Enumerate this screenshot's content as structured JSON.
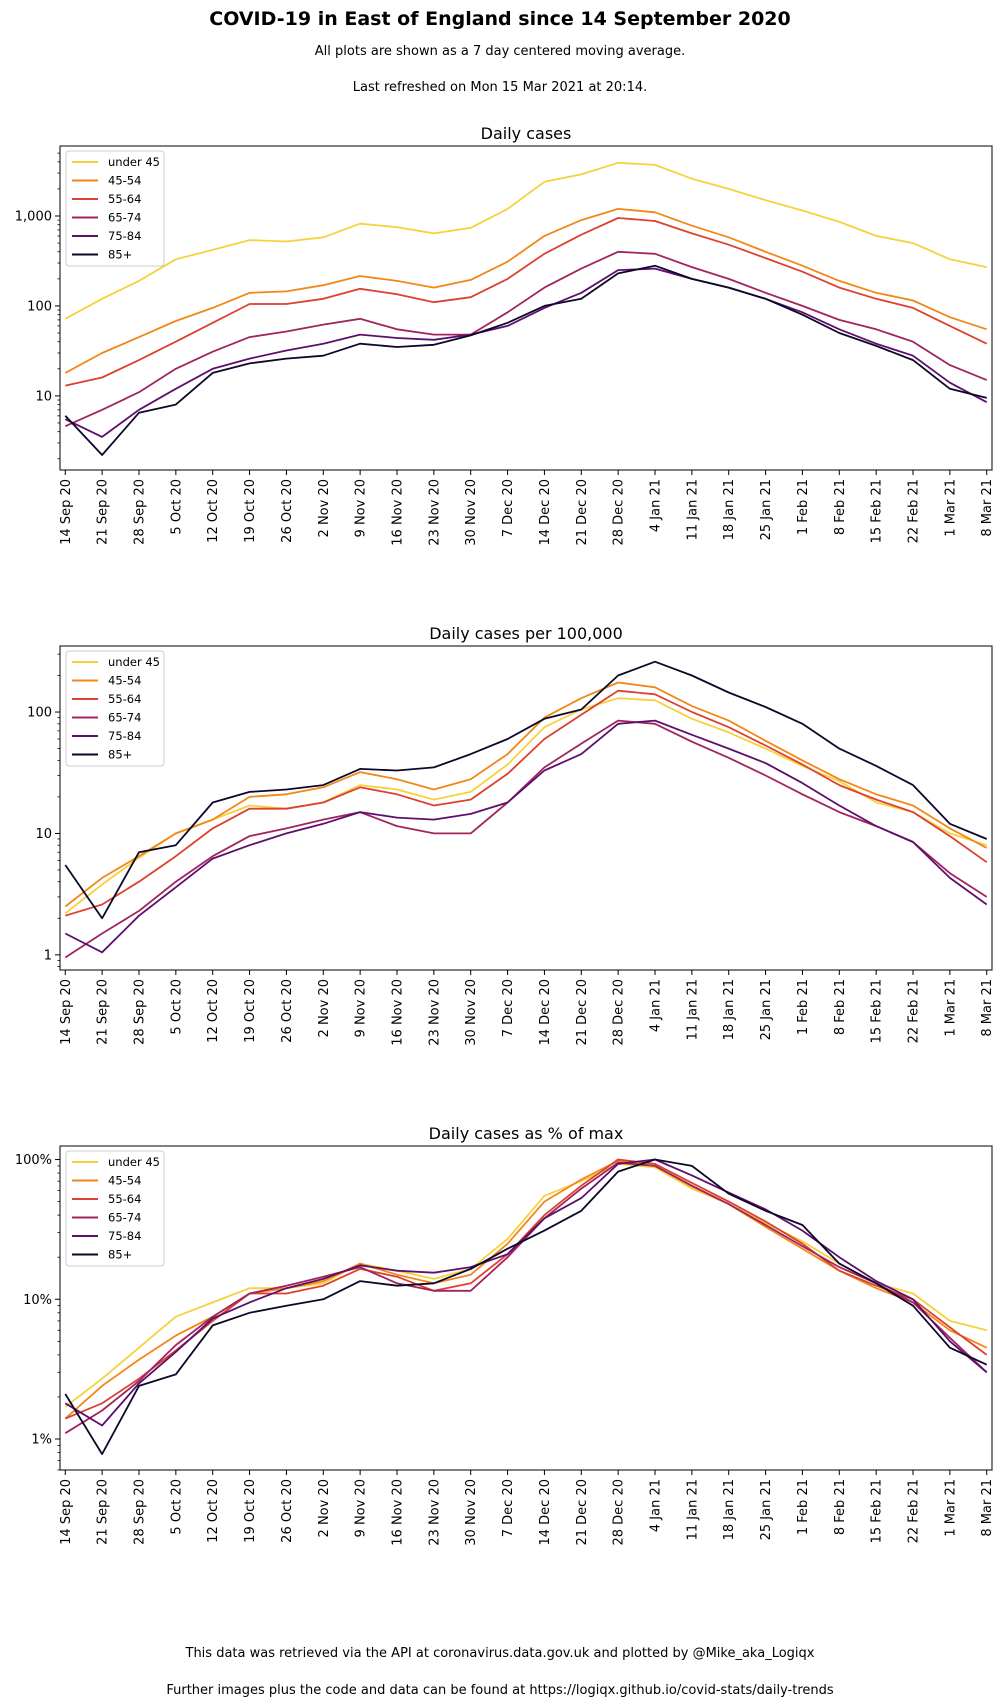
{
  "header": {
    "title": "COVID-19 in East of England since 14 September 2020",
    "subtitle": "All plots are shown as a 7 day centered moving average.",
    "refreshed": "Last refreshed on Mon 15 Mar 2021 at 20:14."
  },
  "footer": {
    "line1": "This data was retrieved via the API at coronavirus.data.gov.uk and plotted by @Mike_aka_Logiqx",
    "line2": "Further images plus the code and data can be found at https://logiqx.github.io/covid-stats/daily-trends"
  },
  "colors": {
    "under 45": "#f5d23c",
    "45-54": "#f28718",
    "55-64": "#dc4130",
    "65-74": "#a1245e",
    "75-84": "#5e0f6e",
    "85+": "#0d0829"
  },
  "chart_data": [
    {
      "type": "line",
      "title": "Daily cases",
      "yscale": "log",
      "ylim": [
        1.5,
        6000
      ],
      "yticks": [
        10,
        100,
        1000
      ],
      "ytick_labels": [
        "10",
        "100",
        "1,000"
      ],
      "legend_position": "top-left",
      "xlim": [
        "13 Sep 20",
        "9 Mar 21"
      ],
      "xtick_labels": [
        "14 Sep 20",
        "21 Sep 20",
        "28 Sep 20",
        "5 Oct 20",
        "12 Oct 20",
        "19 Oct 20",
        "26 Oct 20",
        "2 Nov 20",
        "9 Nov 20",
        "16 Nov 20",
        "23 Nov 20",
        "30 Nov 20",
        "7 Dec 20",
        "14 Dec 20",
        "21 Dec 20",
        "28 Dec 20",
        "4 Jan 21",
        "11 Jan 21",
        "18 Jan 21",
        "25 Jan 21",
        "1 Feb 21",
        "8 Feb 21",
        "15 Feb 21",
        "22 Feb 21",
        "1 Mar 21",
        "8 Mar 21"
      ],
      "x": [
        "14 Sep 20",
        "21 Sep 20",
        "28 Sep 20",
        "5 Oct 20",
        "12 Oct 20",
        "19 Oct 20",
        "26 Oct 20",
        "2 Nov 20",
        "9 Nov 20",
        "16 Nov 20",
        "23 Nov 20",
        "30 Nov 20",
        "7 Dec 20",
        "14 Dec 20",
        "21 Dec 20",
        "28 Dec 20",
        "4 Jan 21",
        "11 Jan 21",
        "18 Jan 21",
        "25 Jan 21",
        "1 Feb 21",
        "8 Feb 21",
        "15 Feb 21",
        "22 Feb 21",
        "1 Mar 21",
        "8 Mar 21"
      ],
      "series": [
        {
          "name": "under 45",
          "values": [
            72,
            120,
            190,
            330,
            420,
            540,
            520,
            580,
            820,
            750,
            640,
            740,
            1200,
            2400,
            2900,
            3900,
            3700,
            2600,
            2000,
            1500,
            1150,
            860,
            600,
            500,
            330,
            270
          ]
        },
        {
          "name": "45-54",
          "values": [
            18,
            30,
            45,
            68,
            95,
            140,
            145,
            170,
            215,
            190,
            160,
            195,
            310,
            600,
            900,
            1200,
            1100,
            780,
            580,
            400,
            280,
            190,
            140,
            115,
            75,
            55
          ]
        },
        {
          "name": "55-64",
          "values": [
            13,
            16,
            25,
            40,
            65,
            105,
            105,
            120,
            155,
            135,
            110,
            125,
            200,
            380,
            620,
            950,
            880,
            640,
            480,
            340,
            240,
            160,
            120,
            95,
            60,
            38
          ]
        },
        {
          "name": "65-74",
          "values": [
            4.6,
            7,
            11,
            20,
            31,
            45,
            52,
            62,
            72,
            55,
            48,
            48,
            85,
            160,
            260,
            400,
            380,
            270,
            200,
            140,
            100,
            70,
            55,
            40,
            22,
            15
          ]
        },
        {
          "name": "75-84",
          "values": [
            5.5,
            3.5,
            7,
            12,
            20,
            26,
            32,
            38,
            48,
            44,
            42,
            48,
            60,
            95,
            140,
            250,
            260,
            200,
            160,
            120,
            85,
            55,
            38,
            28,
            14,
            8.5
          ]
        },
        {
          "name": "85+",
          "values": [
            6,
            2.2,
            6.5,
            8,
            18,
            23,
            26,
            28,
            38,
            35,
            37,
            47,
            65,
            100,
            120,
            230,
            280,
            200,
            160,
            120,
            80,
            50,
            36,
            25,
            12,
            9.5
          ]
        }
      ]
    },
    {
      "type": "line",
      "title": "Daily cases per 100,000",
      "yscale": "log",
      "ylim": [
        0.75,
        350
      ],
      "yticks": [
        1,
        10,
        100
      ],
      "ytick_labels": [
        "1",
        "10",
        "100"
      ],
      "legend_position": "top-left",
      "xlim": [
        "13 Sep 20",
        "9 Mar 21"
      ],
      "xtick_labels": [
        "14 Sep 20",
        "21 Sep 20",
        "28 Sep 20",
        "5 Oct 20",
        "12 Oct 20",
        "19 Oct 20",
        "26 Oct 20",
        "2 Nov 20",
        "9 Nov 20",
        "16 Nov 20",
        "23 Nov 20",
        "30 Nov 20",
        "7 Dec 20",
        "14 Dec 20",
        "21 Dec 20",
        "28 Dec 20",
        "4 Jan 21",
        "11 Jan 21",
        "18 Jan 21",
        "25 Jan 21",
        "1 Feb 21",
        "8 Feb 21",
        "15 Feb 21",
        "22 Feb 21",
        "1 Mar 21",
        "8 Mar 21"
      ],
      "x": [
        "14 Sep 20",
        "21 Sep 20",
        "28 Sep 20",
        "5 Oct 20",
        "12 Oct 20",
        "19 Oct 20",
        "26 Oct 20",
        "2 Nov 20",
        "9 Nov 20",
        "16 Nov 20",
        "23 Nov 20",
        "30 Nov 20",
        "7 Dec 20",
        "14 Dec 20",
        "21 Dec 20",
        "28 Dec 20",
        "4 Jan 21",
        "11 Jan 21",
        "18 Jan 21",
        "25 Jan 21",
        "1 Feb 21",
        "8 Feb 21",
        "15 Feb 21",
        "22 Feb 21",
        "1 Mar 21",
        "8 Mar 21"
      ],
      "series": [
        {
          "name": "under 45",
          "values": [
            2.2,
            3.8,
            6.3,
            10,
            13,
            17,
            16,
            18,
            25,
            23,
            19,
            22,
            37,
            75,
            105,
            130,
            125,
            88,
            68,
            50,
            36,
            27,
            18,
            15,
            10,
            8
          ]
        },
        {
          "name": "45-54",
          "values": [
            2.5,
            4.3,
            6.5,
            10,
            13,
            20,
            21,
            24,
            32,
            28,
            23,
            28,
            45,
            90,
            130,
            175,
            160,
            112,
            85,
            58,
            40,
            28,
            21,
            17,
            11,
            7.6
          ]
        },
        {
          "name": "55-64",
          "values": [
            2.1,
            2.6,
            4,
            6.5,
            11,
            16,
            16,
            18,
            24,
            21,
            17,
            19,
            31,
            60,
            95,
            150,
            140,
            100,
            75,
            53,
            37,
            25,
            19,
            15,
            9.5,
            5.8
          ]
        },
        {
          "name": "65-74",
          "values": [
            0.95,
            1.5,
            2.3,
            4,
            6.5,
            9.5,
            11,
            13,
            15,
            11.5,
            10,
            10,
            18,
            35,
            55,
            85,
            80,
            57,
            42,
            30,
            21,
            15,
            11.5,
            8.5,
            4.7,
            3
          ]
        },
        {
          "name": "75-84",
          "values": [
            1.5,
            1.05,
            2.1,
            3.6,
            6.2,
            8,
            10,
            12,
            15,
            13.5,
            13,
            14.5,
            18,
            33,
            45,
            80,
            85,
            65,
            50,
            38,
            26,
            17,
            11.5,
            8.5,
            4.3,
            2.6
          ]
        },
        {
          "name": "85+",
          "values": [
            5.5,
            2,
            7,
            8,
            18,
            22,
            23,
            25,
            34,
            33,
            35,
            45,
            60,
            88,
            105,
            200,
            260,
            200,
            145,
            110,
            80,
            50,
            36,
            25,
            12,
            9
          ]
        }
      ]
    },
    {
      "type": "line",
      "title": "Daily cases as % of max",
      "yscale": "log",
      "ylim": [
        0.6,
        125
      ],
      "yticks": [
        1,
        10,
        100
      ],
      "ytick_labels": [
        "1%",
        "10%",
        "100%"
      ],
      "legend_position": "top-left",
      "xlim": [
        "13 Sep 20",
        "9 Mar 21"
      ],
      "xtick_labels": [
        "14 Sep 20",
        "21 Sep 20",
        "28 Sep 20",
        "5 Oct 20",
        "12 Oct 20",
        "19 Oct 20",
        "26 Oct 20",
        "2 Nov 20",
        "9 Nov 20",
        "16 Nov 20",
        "23 Nov 20",
        "30 Nov 20",
        "7 Dec 20",
        "14 Dec 20",
        "21 Dec 20",
        "28 Dec 20",
        "4 Jan 21",
        "11 Jan 21",
        "18 Jan 21",
        "25 Jan 21",
        "1 Feb 21",
        "8 Feb 21",
        "15 Feb 21",
        "22 Feb 21",
        "1 Mar 21",
        "8 Mar 21"
      ],
      "x": [
        "14 Sep 20",
        "21 Sep 20",
        "28 Sep 20",
        "5 Oct 20",
        "12 Oct 20",
        "19 Oct 20",
        "26 Oct 20",
        "2 Nov 20",
        "9 Nov 20",
        "16 Nov 20",
        "23 Nov 20",
        "30 Nov 20",
        "7 Dec 20",
        "14 Dec 20",
        "21 Dec 20",
        "28 Dec 20",
        "4 Jan 21",
        "11 Jan 21",
        "18 Jan 21",
        "25 Jan 21",
        "1 Feb 21",
        "8 Feb 21",
        "15 Feb 21",
        "22 Feb 21",
        "1 Mar 21",
        "8 Mar 21"
      ],
      "series": [
        {
          "name": "under 45",
          "values": [
            1.7,
            2.7,
            4.5,
            7.5,
            9.5,
            12,
            12,
            13,
            18,
            16,
            14,
            16.5,
            27,
            55,
            70,
            93,
            88,
            62,
            48,
            35,
            26,
            18,
            13,
            11,
            7,
            6
          ]
        },
        {
          "name": "45-54",
          "values": [
            1.4,
            2.4,
            3.7,
            5.5,
            7.5,
            11,
            12,
            13.5,
            18,
            15,
            13,
            15,
            25,
            50,
            72,
            98,
            90,
            64,
            48,
            33,
            23,
            16,
            12,
            9.5,
            6,
            4.5
          ]
        },
        {
          "name": "55-64",
          "values": [
            1.4,
            1.8,
            2.7,
            4.3,
            7,
            11,
            11,
            12.5,
            16.5,
            14.5,
            11.5,
            13,
            21,
            40,
            65,
            100,
            93,
            68,
            50,
            36,
            25,
            16,
            12.5,
            10,
            6.3,
            4
          ]
        },
        {
          "name": "65-74",
          "values": [
            1.1,
            1.6,
            2.6,
            4.7,
            7.5,
            11,
            12.5,
            14.5,
            17,
            13,
            11.5,
            11.5,
            20,
            38,
            62,
            95,
            90,
            65,
            48,
            34,
            24,
            17,
            13,
            9.5,
            5.3,
            3
          ]
        },
        {
          "name": "75-84",
          "values": [
            1.8,
            1.25,
            2.5,
            4.2,
            7.3,
            9.5,
            12,
            14,
            17.5,
            16,
            15.5,
            17,
            21,
            38,
            53,
            93,
            100,
            77,
            58,
            44,
            31,
            20,
            13.5,
            10,
            5,
            3
          ]
        },
        {
          "name": "85+",
          "values": [
            2.1,
            0.78,
            2.4,
            2.9,
            6.5,
            8,
            9,
            10,
            13.5,
            12.5,
            13,
            16.5,
            23,
            31,
            43,
            82,
            100,
            90,
            57,
            43,
            34,
            18,
            13,
            9,
            4.5,
            3.4
          ]
        }
      ]
    }
  ]
}
